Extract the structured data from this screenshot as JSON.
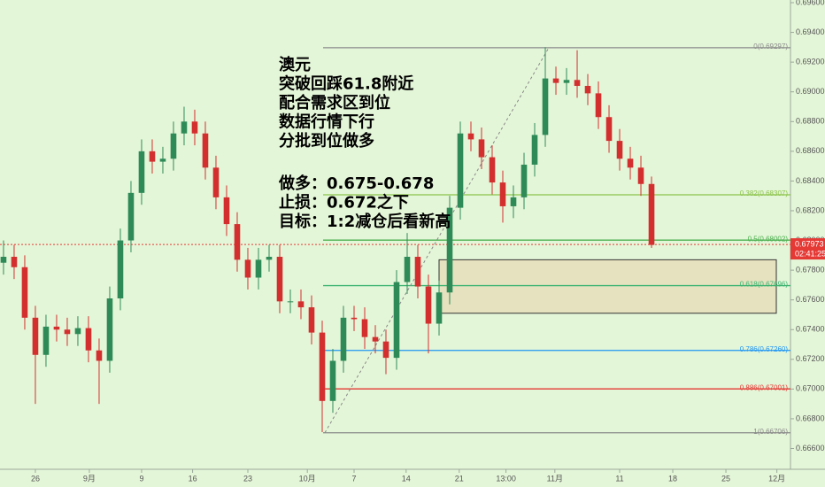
{
  "chart_data": {
    "type": "candlestick",
    "annotation": [
      "澳元",
      "突破回踩61.8附近",
      "配合需求区到位",
      "数据行情下行",
      "分批到位做多"
    ],
    "plan": [
      "做多：0.675-0.678",
      "止损：0.672之下",
      "目标：1:2减仓后看新高"
    ],
    "up_color": "#2e8b57",
    "down_color": "#d32f2f",
    "open": [
      0.6785,
      0.6789,
      0.6782,
      0.6748,
      0.6723,
      0.6742,
      0.674,
      0.6737,
      0.6741,
      0.6726,
      0.6719,
      0.6761,
      0.68,
      0.6832,
      0.686,
      0.6853,
      0.6855,
      0.6872,
      0.688,
      0.6872,
      0.6849,
      0.6829,
      0.6811,
      0.6787,
      0.6775,
      0.6787,
      0.6789,
      0.6759,
      0.6759,
      0.6755,
      0.6738,
      0.6692,
      0.6719,
      0.6748,
      0.6747,
      0.6735,
      0.6732,
      0.6721,
      0.6772,
      0.6789,
      0.6769,
      0.6744,
      0.6765,
      0.6822,
      0.6872,
      0.6868,
      0.6856,
      0.6839,
      0.6823,
      0.6829,
      0.6851,
      0.6871,
      0.6909,
      0.6906,
      0.6908,
      0.6904,
      0.6899,
      0.6883,
      0.6867,
      0.6855,
      0.6849,
      0.6838
    ],
    "high": [
      0.68,
      0.6797,
      0.679,
      0.6756,
      0.675,
      0.675,
      0.6748,
      0.6749,
      0.6749,
      0.6734,
      0.6769,
      0.6808,
      0.684,
      0.6868,
      0.6868,
      0.6863,
      0.688,
      0.689,
      0.6888,
      0.688,
      0.6857,
      0.6837,
      0.6819,
      0.6795,
      0.6795,
      0.6797,
      0.6797,
      0.6767,
      0.6767,
      0.6763,
      0.6746,
      0.6727,
      0.6756,
      0.6756,
      0.6755,
      0.6743,
      0.674,
      0.678,
      0.6805,
      0.6797,
      0.6777,
      0.6773,
      0.683,
      0.688,
      0.688,
      0.6876,
      0.6864,
      0.6847,
      0.6837,
      0.6859,
      0.6879,
      0.693,
      0.6917,
      0.6916,
      0.6928,
      0.6912,
      0.6907,
      0.6891,
      0.6875,
      0.6863,
      0.6857,
      0.6843
    ],
    "low": [
      0.6777,
      0.6774,
      0.674,
      0.669,
      0.6715,
      0.6732,
      0.6729,
      0.6729,
      0.6718,
      0.669,
      0.6711,
      0.6753,
      0.6792,
      0.6824,
      0.6845,
      0.6845,
      0.6847,
      0.6864,
      0.6864,
      0.6841,
      0.6821,
      0.6803,
      0.6779,
      0.6767,
      0.6767,
      0.6779,
      0.6751,
      0.6751,
      0.6747,
      0.673,
      0.6671,
      0.6684,
      0.6711,
      0.6739,
      0.6727,
      0.6724,
      0.671,
      0.6713,
      0.6764,
      0.6761,
      0.6724,
      0.6736,
      0.6757,
      0.6814,
      0.686,
      0.6848,
      0.6831,
      0.6812,
      0.6815,
      0.6821,
      0.6843,
      0.6863,
      0.6898,
      0.6898,
      0.6896,
      0.6891,
      0.6875,
      0.6859,
      0.6847,
      0.6841,
      0.683,
      0.6795
    ],
    "close": [
      0.6789,
      0.6782,
      0.6748,
      0.6723,
      0.6742,
      0.674,
      0.6737,
      0.6741,
      0.6726,
      0.6719,
      0.6761,
      0.68,
      0.6832,
      0.686,
      0.6853,
      0.6855,
      0.6872,
      0.688,
      0.6872,
      0.6849,
      0.6829,
      0.6811,
      0.6787,
      0.6775,
      0.6787,
      0.6789,
      0.6759,
      0.6759,
      0.6755,
      0.6738,
      0.6692,
      0.6719,
      0.6748,
      0.6747,
      0.6735,
      0.6732,
      0.6721,
      0.6772,
      0.6789,
      0.6769,
      0.6744,
      0.6765,
      0.6822,
      0.6872,
      0.6868,
      0.6856,
      0.6839,
      0.6823,
      0.6829,
      0.6851,
      0.6871,
      0.6909,
      0.6906,
      0.6908,
      0.6904,
      0.6899,
      0.6883,
      0.6867,
      0.6855,
      0.6849,
      0.6838,
      0.6797
    ],
    "xlim": [
      -0.33,
      74.08
    ],
    "xticks": [
      {
        "value": 3,
        "label": "26"
      },
      {
        "value": 8.08,
        "label": "9月"
      },
      {
        "value": 13,
        "label": "9"
      },
      {
        "value": 17.8,
        "label": "16"
      },
      {
        "value": 23,
        "label": "23"
      },
      {
        "value": 28.6,
        "label": "10月"
      },
      {
        "value": 33,
        "label": "7"
      },
      {
        "value": 37.9,
        "label": "14"
      },
      {
        "value": 42.9,
        "label": "21"
      },
      {
        "value": 47.3,
        "label": "13:00"
      },
      {
        "value": 51.9,
        "label": "11月"
      },
      {
        "value": 58,
        "label": "11"
      },
      {
        "value": 63,
        "label": "18"
      },
      {
        "value": 68,
        "label": "25"
      },
      {
        "value": 72.8,
        "label": "12月"
      }
    ],
    "ylim": [
      0.6646,
      0.69618
    ],
    "yticks": [
      {
        "value": 0.696,
        "label": "0.69600"
      },
      {
        "value": 0.694,
        "label": "0.69400"
      },
      {
        "value": 0.692,
        "label": "0.69200"
      },
      {
        "value": 0.69,
        "label": "0.69000"
      },
      {
        "value": 0.688,
        "label": "0.68800"
      },
      {
        "value": 0.686,
        "label": "0.68600"
      },
      {
        "value": 0.684,
        "label": "0.68400"
      },
      {
        "value": 0.682,
        "label": "0.68200"
      },
      {
        "value": 0.68,
        "label": "0.68000"
      },
      {
        "value": 0.678,
        "label": "0.67800"
      },
      {
        "value": 0.676,
        "label": "0.67600"
      },
      {
        "value": 0.674,
        "label": "0.67400"
      },
      {
        "value": 0.672,
        "label": "0.67200"
      },
      {
        "value": 0.67,
        "label": "0.67000"
      },
      {
        "value": 0.668,
        "label": "0.66800"
      },
      {
        "value": 0.666,
        "label": "0.66600"
      }
    ],
    "fib_levels": [
      {
        "value": 0.69297,
        "label": "0(0.69297)",
        "color": "#8a8a8a"
      },
      {
        "value": 0.68307,
        "label": "0.382(0.68307)",
        "color": "#8bc34a"
      },
      {
        "value": 0.68002,
        "label": "0.5(0.68002)",
        "color": "#4caf50"
      },
      {
        "value": 0.67696,
        "label": "0.618(0.67696)",
        "color": "#3cb371"
      },
      {
        "value": 0.6726,
        "label": "0.786(0.67260)",
        "color": "#2196f3"
      },
      {
        "value": 0.67001,
        "label": "0.886(0.67001)",
        "color": "#e53935"
      },
      {
        "value": 0.66706,
        "label": "1(0.66706)",
        "color": "#8a8a8a"
      }
    ],
    "zone": [
      0.6751,
      0.6787
    ],
    "last_price": {
      "value": 0.67973,
      "label": "0.67973"
    },
    "countdown": "02:41:25"
  }
}
